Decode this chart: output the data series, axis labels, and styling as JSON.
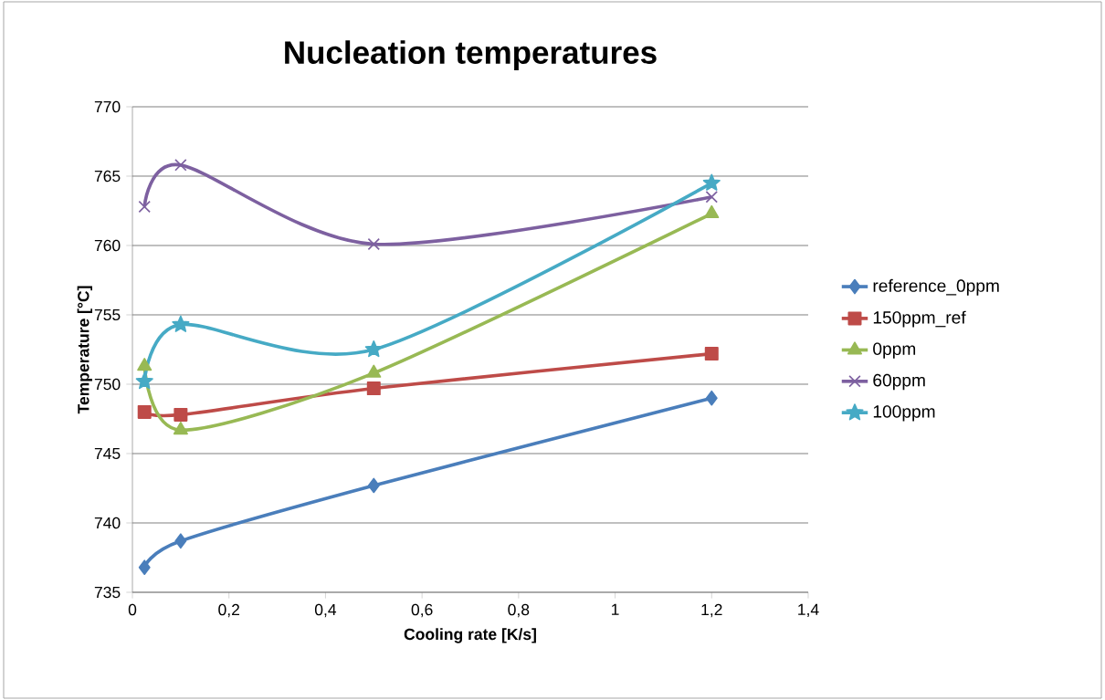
{
  "chart_data": {
    "type": "line",
    "title": "Nucleation temperatures",
    "xlabel": "Cooling rate [K/s]",
    "ylabel": "Temperature [°C]",
    "x": [
      0.025,
      0.1,
      0.5,
      1.2
    ],
    "series": [
      {
        "name": "reference_0ppm",
        "color": "#4a7ebb",
        "marker": "diamond",
        "values": [
          736.8,
          738.7,
          742.7,
          749.0
        ]
      },
      {
        "name": "150ppm_ref",
        "color": "#be4b48",
        "marker": "square",
        "values": [
          748.0,
          747.8,
          749.7,
          752.2
        ]
      },
      {
        "name": "0ppm",
        "color": "#98b954",
        "marker": "triangle",
        "values": [
          751.3,
          746.7,
          750.8,
          762.3
        ]
      },
      {
        "name": "60ppm",
        "color": "#7d60a0",
        "marker": "cross",
        "values": [
          762.8,
          765.8,
          760.1,
          763.5
        ]
      },
      {
        "name": "100ppm",
        "color": "#46aac5",
        "marker": "star",
        "values": [
          750.2,
          754.3,
          752.5,
          764.5
        ]
      }
    ],
    "xlim": [
      0,
      1.4
    ],
    "xticks": [
      0,
      {
        "value": 0.2,
        "label": "0,2"
      },
      {
        "value": 0.4,
        "label": "0,4"
      },
      {
        "value": 0.6,
        "label": "0,6"
      },
      {
        "value": 0.8,
        "label": "0,8"
      },
      1,
      {
        "value": 1.2,
        "label": "1,2"
      },
      {
        "value": 1.4,
        "label": "1,4"
      }
    ],
    "ylim": [
      735,
      770
    ],
    "yticks": [
      735,
      740,
      745,
      750,
      755,
      760,
      765,
      770
    ],
    "grid": "y",
    "legend": "right",
    "line_style": "solid"
  }
}
